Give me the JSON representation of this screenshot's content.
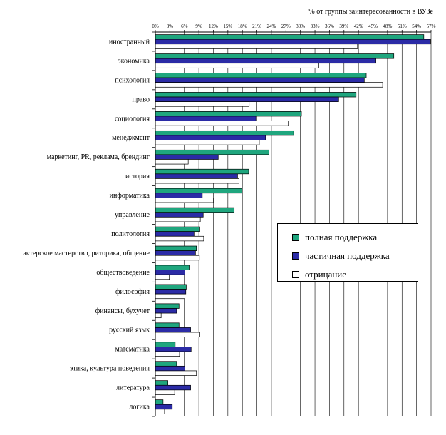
{
  "chart_data": {
    "type": "bar",
    "orientation": "horizontal",
    "xlabel": "% от группы заинтересованности в ВУЗе",
    "xlim": [
      0,
      57
    ],
    "x_ticks": [
      "0%",
      "3%",
      "6%",
      "9%",
      "12%",
      "15%",
      "18%",
      "21%",
      "24%",
      "27%",
      "30%",
      "33%",
      "36%",
      "39%",
      "42%",
      "45%",
      "48%",
      "51%",
      "54%",
      "57%"
    ],
    "grid": "vertical",
    "legend_position": "right-middle",
    "categories": [
      "иностранный",
      "экономика",
      "психология",
      "право",
      "социология",
      "менеджмент",
      "маркетинг, PR, реклама, брендинг",
      "история",
      "информатика",
      "управление",
      "политология",
      "актерское мастерство, риторика, общение",
      "обществоведение",
      "философия",
      "финансы, бухучет",
      "русский язык",
      "математика",
      "этика, культура поведения",
      "литература",
      "логика"
    ],
    "series": [
      {
        "name": "полная поддержка",
        "color": "#1fa67e",
        "values": [
          55.5,
          49.3,
          43.6,
          41.5,
          30.2,
          28.6,
          23.5,
          19.3,
          17.9,
          16.3,
          9.2,
          8.5,
          7.0,
          6.4,
          4.9,
          4.9,
          4.1,
          4.4,
          2.6,
          1.6
        ]
      },
      {
        "name": "частичная поддержка",
        "color": "#2b2ba6",
        "values": [
          56.9,
          45.6,
          43.2,
          37.9,
          20.8,
          22.8,
          13.0,
          17.0,
          9.7,
          9.9,
          8.0,
          8.3,
          6.1,
          6.3,
          4.4,
          7.3,
          7.4,
          6.1,
          7.3,
          3.5
        ]
      },
      {
        "name": "отрицание",
        "color": "#ffffff",
        "values": [
          41.8,
          33.8,
          47.0,
          19.4,
          27.5,
          21.5,
          6.8,
          17.3,
          12.0,
          9.3,
          10.0,
          9.1,
          2.9,
          6.1,
          1.2,
          9.2,
          5.0,
          8.5,
          4.0,
          1.9
        ]
      }
    ]
  }
}
